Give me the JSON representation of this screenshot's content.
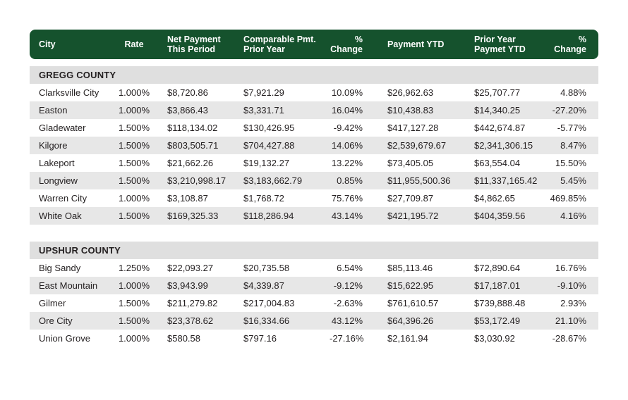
{
  "colors": {
    "header_green": "#15522d",
    "county_row_gray": "#dfdfdf",
    "stripe_gray": "#e7e7e7",
    "text_dark": "#231f20",
    "header_text": "#ffffff"
  },
  "table": {
    "columns": [
      {
        "label": "City"
      },
      {
        "label": "Rate"
      },
      {
        "label": "Net Payment\nThis Period"
      },
      {
        "label": "Comparable Pmt.\nPrior Year"
      },
      {
        "label": "% Change"
      },
      {
        "label": "Payment YTD"
      },
      {
        "label": "Prior Year\nPaymet YTD"
      },
      {
        "label": "% Change"
      }
    ],
    "sections": [
      {
        "name": "GREGG COUNTY",
        "rows": [
          {
            "city": "Clarksville City",
            "rate": "1.000%",
            "net_payment": "$8,720.86",
            "comparable_pmt": "$7,921.29",
            "pct_change": "10.09%",
            "payment_ytd": "$26,962.63",
            "prior_year_ytd": "$25,707.77",
            "ytd_pct_change": "4.88%"
          },
          {
            "city": "Easton",
            "rate": "1.000%",
            "net_payment": "$3,866.43",
            "comparable_pmt": "$3,331.71",
            "pct_change": "16.04%",
            "payment_ytd": "$10,438.83",
            "prior_year_ytd": "$14,340.25",
            "ytd_pct_change": "-27.20%"
          },
          {
            "city": "Gladewater",
            "rate": "1.500%",
            "net_payment": "$118,134.02",
            "comparable_pmt": "$130,426.95",
            "pct_change": "-9.42%",
            "payment_ytd": "$417,127.28",
            "prior_year_ytd": "$442,674.87",
            "ytd_pct_change": "-5.77%"
          },
          {
            "city": "Kilgore",
            "rate": "1.500%",
            "net_payment": "$803,505.71",
            "comparable_pmt": "$704,427.88",
            "pct_change": "14.06%",
            "payment_ytd": "$2,539,679.67",
            "prior_year_ytd": "$2,341,306.15",
            "ytd_pct_change": "8.47%"
          },
          {
            "city": "Lakeport",
            "rate": "1.500%",
            "net_payment": "$21,662.26",
            "comparable_pmt": "$19,132.27",
            "pct_change": "13.22%",
            "payment_ytd": "$73,405.05",
            "prior_year_ytd": "$63,554.04",
            "ytd_pct_change": "15.50%"
          },
          {
            "city": "Longview",
            "rate": "1.500%",
            "net_payment": "$3,210,998.17",
            "comparable_pmt": "$3,183,662.79",
            "pct_change": "0.85%",
            "payment_ytd": "$11,955,500.36",
            "prior_year_ytd": "$11,337,165.42",
            "ytd_pct_change": "5.45%"
          },
          {
            "city": "Warren City",
            "rate": "1.000%",
            "net_payment": "$3,108.87",
            "comparable_pmt": "$1,768.72",
            "pct_change": "75.76%",
            "payment_ytd": "$27,709.87",
            "prior_year_ytd": "$4,862.65",
            "ytd_pct_change": "469.85%"
          },
          {
            "city": "White Oak",
            "rate": "1.500%",
            "net_payment": "$169,325.33",
            "comparable_pmt": "$118,286.94",
            "pct_change": "43.14%",
            "payment_ytd": "$421,195.72",
            "prior_year_ytd": "$404,359.56",
            "ytd_pct_change": "4.16%"
          }
        ]
      },
      {
        "name": "UPSHUR COUNTY",
        "rows": [
          {
            "city": "Big Sandy",
            "rate": "1.250%",
            "net_payment": "$22,093.27",
            "comparable_pmt": "$20,735.58",
            "pct_change": "6.54%",
            "payment_ytd": "$85,113.46",
            "prior_year_ytd": "$72,890.64",
            "ytd_pct_change": "16.76%"
          },
          {
            "city": "East Mountain",
            "rate": "1.000%",
            "net_payment": "$3,943.99",
            "comparable_pmt": "$4,339.87",
            "pct_change": "-9.12%",
            "payment_ytd": "$15,622.95",
            "prior_year_ytd": "$17,187.01",
            "ytd_pct_change": "-9.10%"
          },
          {
            "city": "Gilmer",
            "rate": "1.500%",
            "net_payment": "$211,279.82",
            "comparable_pmt": "$217,004.83",
            "pct_change": "-2.63%",
            "payment_ytd": "$761,610.57",
            "prior_year_ytd": "$739,888.48",
            "ytd_pct_change": "2.93%"
          },
          {
            "city": "Ore City",
            "rate": "1.500%",
            "net_payment": "$23,378.62",
            "comparable_pmt": "$16,334.66",
            "pct_change": "43.12%",
            "payment_ytd": "$64,396.26",
            "prior_year_ytd": "$53,172.49",
            "ytd_pct_change": "21.10%"
          },
          {
            "city": "Union Grove",
            "rate": "1.000%",
            "net_payment": "$580.58",
            "comparable_pmt": "$797.16",
            "pct_change": "-27.16%",
            "payment_ytd": "$2,161.94",
            "prior_year_ytd": "$3,030.92",
            "ytd_pct_change": "-28.67%"
          }
        ]
      }
    ]
  }
}
